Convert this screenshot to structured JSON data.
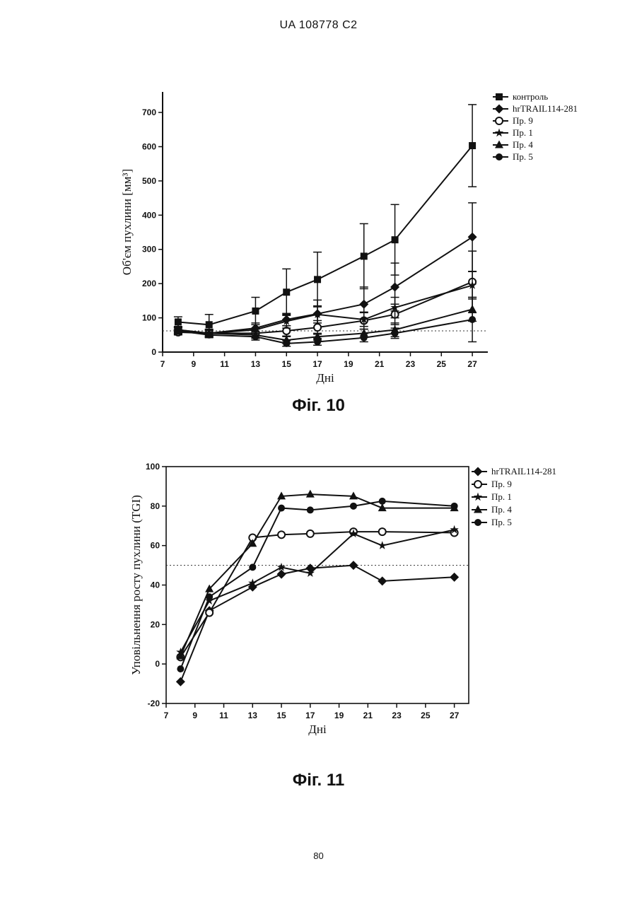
{
  "header": "UA 108778 C2",
  "page_number": "80",
  "figures": [
    {
      "caption": "Фіг. 10"
    },
    {
      "caption": "Фіг. 11"
    }
  ],
  "chart_data": [
    {
      "type": "line",
      "xlabel": "Дні",
      "ylabel": "Об'єм пухлини [мм³]",
      "xlim": [
        7,
        28
      ],
      "ylim": [
        0,
        760
      ],
      "xticks": [
        7,
        9,
        11,
        13,
        15,
        17,
        19,
        21,
        23,
        25,
        27
      ],
      "yticks": [
        0,
        100,
        200,
        300,
        400,
        500,
        600,
        700
      ],
      "reference_line": 62,
      "legend_position": "right",
      "series": [
        {
          "name": "контроль",
          "marker": "square",
          "x": [
            8,
            10,
            13,
            15,
            17,
            20,
            22,
            27
          ],
          "y": [
            88,
            80,
            120,
            175,
            212,
            280,
            328,
            603
          ],
          "err": [
            15,
            30,
            40,
            68,
            80,
            95,
            103,
            120
          ]
        },
        {
          "name": "hrTRAIL114-281",
          "marker": "diamond",
          "x": [
            8,
            10,
            13,
            15,
            17,
            20,
            22,
            27
          ],
          "y": [
            65,
            55,
            70,
            95,
            112,
            140,
            190,
            336
          ],
          "err": [
            10,
            12,
            15,
            18,
            40,
            50,
            70,
            100
          ]
        },
        {
          "name": "Пр. 9",
          "marker": "circle-open",
          "x": [
            8,
            10,
            13,
            15,
            17,
            20,
            22,
            27
          ],
          "y": [
            58,
            55,
            55,
            62,
            72,
            92,
            110,
            205
          ],
          "err": [
            8,
            10,
            12,
            15,
            20,
            25,
            30,
            90
          ]
        },
        {
          "name": "Пр. 1",
          "marker": "star",
          "x": [
            8,
            10,
            13,
            15,
            17,
            20,
            22,
            27
          ],
          "y": [
            62,
            55,
            65,
            90,
            110,
            95,
            130,
            195
          ],
          "err": [
            8,
            10,
            15,
            20,
            25,
            20,
            30,
            40
          ]
        },
        {
          "name": "Пр. 4",
          "marker": "triangle",
          "x": [
            8,
            10,
            13,
            15,
            17,
            20,
            22,
            27
          ],
          "y": [
            65,
            55,
            50,
            35,
            45,
            55,
            65,
            125
          ],
          "err": [
            8,
            8,
            10,
            10,
            10,
            12,
            20,
            35
          ]
        },
        {
          "name": "Пр. 5",
          "marker": "circle",
          "x": [
            8,
            10,
            13,
            15,
            17,
            20,
            22,
            27
          ],
          "y": [
            62,
            50,
            45,
            25,
            30,
            42,
            55,
            95
          ],
          "err": [
            10,
            8,
            10,
            8,
            10,
            12,
            15,
            65
          ]
        }
      ]
    },
    {
      "type": "line",
      "xlabel": "Дні",
      "ylabel": "Уповільнення росту пухлини (TGI)",
      "xlim": [
        7,
        28
      ],
      "ylim": [
        -20,
        100
      ],
      "xticks": [
        7,
        9,
        11,
        13,
        15,
        17,
        19,
        21,
        23,
        25,
        27
      ],
      "yticks": [
        -20,
        0,
        20,
        40,
        60,
        80,
        100
      ],
      "reference_line": 50,
      "legend_position": "right",
      "series": [
        {
          "name": "hrTRAIL114-281",
          "marker": "diamond",
          "x": [
            8,
            10,
            13,
            15,
            17,
            20,
            22,
            27
          ],
          "y": [
            -9,
            27,
            39,
            45.5,
            48.5,
            50,
            42,
            44
          ]
        },
        {
          "name": "Пр. 9",
          "marker": "circle-open",
          "x": [
            8,
            10,
            13,
            15,
            17,
            20,
            22,
            27
          ],
          "y": [
            3.5,
            26,
            64,
            65.5,
            66,
            67,
            67,
            66.5
          ]
        },
        {
          "name": "Пр. 1",
          "marker": "star",
          "x": [
            8,
            10,
            13,
            15,
            17,
            20,
            22,
            27
          ],
          "y": [
            6,
            32,
            41,
            49,
            46,
            66,
            60,
            68
          ]
        },
        {
          "name": "Пр. 4",
          "marker": "triangle",
          "x": [
            8,
            10,
            13,
            15,
            17,
            20,
            22,
            27
          ],
          "y": [
            4,
            38,
            61,
            85,
            86,
            85,
            79,
            79
          ]
        },
        {
          "name": "Пр. 5",
          "marker": "circle",
          "x": [
            8,
            10,
            13,
            15,
            17,
            20,
            22,
            27
          ],
          "y": [
            -2.5,
            34,
            49,
            79,
            78,
            80,
            82.5,
            80
          ]
        }
      ]
    }
  ]
}
